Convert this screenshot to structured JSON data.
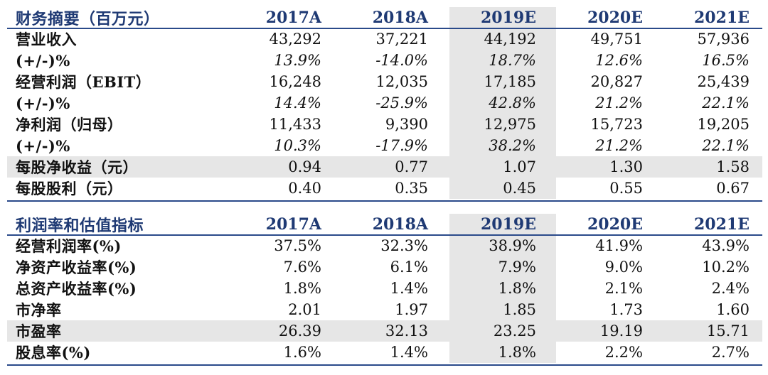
{
  "section1": {
    "title": "财务摘要（百万元）",
    "years": [
      "2017A",
      "2018A",
      "2019E",
      "2020E",
      "2021E"
    ],
    "rows": [
      {
        "label": "营业收入",
        "values": [
          "43,292",
          "37,221",
          "44,192",
          "49,751",
          "57,936"
        ],
        "italic": false,
        "shade": false
      },
      {
        "label": "(+/-)%",
        "values": [
          "13.9%",
          "-14.0%",
          "18.7%",
          "12.6%",
          "16.5%"
        ],
        "italic": true,
        "shade": false
      },
      {
        "label": "经营利润（EBIT）",
        "values": [
          "16,248",
          "12,035",
          "17,185",
          "20,827",
          "25,439"
        ],
        "italic": false,
        "shade": false
      },
      {
        "label": "(+/-)%",
        "values": [
          "14.4%",
          "-25.9%",
          "42.8%",
          "21.2%",
          "22.1%"
        ],
        "italic": true,
        "shade": false
      },
      {
        "label": "净利润（归母）",
        "values": [
          "11,433",
          "9,390",
          "12,975",
          "15,723",
          "19,205"
        ],
        "italic": false,
        "shade": false
      },
      {
        "label": "(+/-)%",
        "values": [
          "10.3%",
          "-17.9%",
          "38.2%",
          "21.2%",
          "22.1%"
        ],
        "italic": true,
        "shade": false
      },
      {
        "label": "每股净收益（元）",
        "values": [
          "0.94",
          "0.77",
          "1.07",
          "1.30",
          "1.58"
        ],
        "italic": false,
        "shade": true
      },
      {
        "label": "每股股利（元）",
        "values": [
          "0.40",
          "0.35",
          "0.45",
          "0.55",
          "0.67"
        ],
        "italic": false,
        "shade": false
      }
    ]
  },
  "section2": {
    "title": "利润率和估值指标",
    "years": [
      "2017A",
      "2018A",
      "2019E",
      "2020E",
      "2021E"
    ],
    "rows": [
      {
        "label": "经营利润率(%)",
        "values": [
          "37.5%",
          "32.3%",
          "38.9%",
          "41.9%",
          "43.9%"
        ],
        "italic": false,
        "shade": false
      },
      {
        "label": "净资产收益率(%)",
        "values": [
          "7.6%",
          "6.1%",
          "7.9%",
          "9.0%",
          "10.2%"
        ],
        "italic": false,
        "shade": false
      },
      {
        "label": "总资产收益率(%)",
        "values": [
          "1.8%",
          "1.4%",
          "1.8%",
          "2.1%",
          "2.4%"
        ],
        "italic": false,
        "shade": false
      },
      {
        "label": "市净率",
        "values": [
          "2.01",
          "1.97",
          "1.85",
          "1.73",
          "1.60"
        ],
        "italic": false,
        "shade": false
      },
      {
        "label": "市盈率",
        "values": [
          "26.39",
          "32.13",
          "23.25",
          "19.19",
          "15.71"
        ],
        "italic": false,
        "shade": true
      },
      {
        "label": "股息率(%)",
        "values": [
          "1.6%",
          "1.4%",
          "1.8%",
          "2.2%",
          "2.7%"
        ],
        "italic": false,
        "shade": false
      }
    ]
  },
  "colors": {
    "header_text": "#1f3a74",
    "rule": "#2a4a8a",
    "shade": "#e6e6e6"
  }
}
